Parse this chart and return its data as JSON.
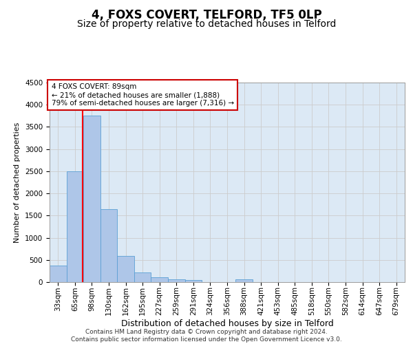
{
  "title1": "4, FOXS COVERT, TELFORD, TF5 0LP",
  "title2": "Size of property relative to detached houses in Telford",
  "xlabel": "Distribution of detached houses by size in Telford",
  "ylabel": "Number of detached properties",
  "footer": "Contains HM Land Registry data © Crown copyright and database right 2024.\nContains public sector information licensed under the Open Government Licence v3.0.",
  "categories": [
    "33sqm",
    "65sqm",
    "98sqm",
    "130sqm",
    "162sqm",
    "195sqm",
    "227sqm",
    "259sqm",
    "291sqm",
    "324sqm",
    "356sqm",
    "388sqm",
    "421sqm",
    "453sqm",
    "485sqm",
    "518sqm",
    "550sqm",
    "582sqm",
    "614sqm",
    "647sqm",
    "679sqm"
  ],
  "values": [
    370,
    2500,
    3750,
    1650,
    595,
    220,
    105,
    60,
    40,
    0,
    0,
    55,
    0,
    0,
    0,
    0,
    0,
    0,
    0,
    0,
    0
  ],
  "bar_color": "#aec6e8",
  "bar_edge_color": "#5a9fd4",
  "annotation_box_text": "4 FOXS COVERT: 89sqm\n← 21% of detached houses are smaller (1,888)\n79% of semi-detached houses are larger (7,316) →",
  "ylim": [
    0,
    4500
  ],
  "yticks": [
    0,
    500,
    1000,
    1500,
    2000,
    2500,
    3000,
    3500,
    4000,
    4500
  ],
  "red_line_x": 1.47,
  "grid_color": "#cccccc",
  "annotation_box_color": "#cc0000",
  "title1_fontsize": 12,
  "title2_fontsize": 10,
  "xlabel_fontsize": 9,
  "ylabel_fontsize": 8,
  "footer_fontsize": 6.5,
  "tick_fontsize": 7.5,
  "ann_fontsize": 7.5
}
